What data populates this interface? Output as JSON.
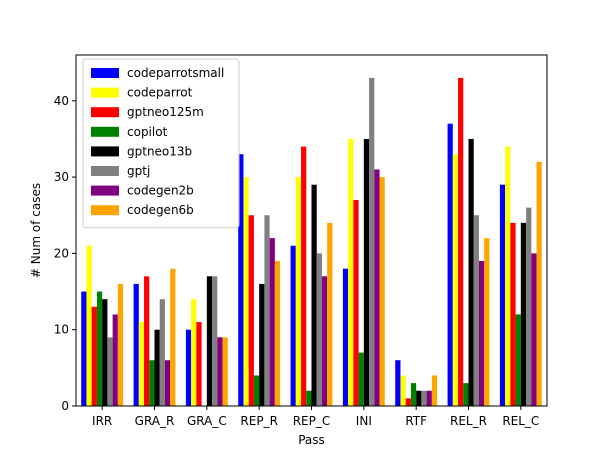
{
  "chart_data": {
    "type": "bar",
    "xlabel": "Pass",
    "ylabel": "# Num of cases",
    "ylim": [
      0,
      46
    ],
    "yticks": [
      0,
      10,
      20,
      30,
      40
    ],
    "categories": [
      "IRR",
      "GRA_R",
      "GRA_C",
      "REP_R",
      "REP_C",
      "INI",
      "RTF",
      "REL_R",
      "REL_C"
    ],
    "legend_position": "top-left",
    "series": [
      {
        "name": "codeparrotsmall",
        "color": "#0000ff",
        "values": [
          15,
          16,
          10,
          33,
          21,
          18,
          6,
          37,
          29
        ]
      },
      {
        "name": "codeparrot",
        "color": "#ffff00",
        "values": [
          21,
          11,
          14,
          30,
          30,
          35,
          4,
          33,
          34
        ]
      },
      {
        "name": "gptneo125m",
        "color": "#ff0000",
        "values": [
          13,
          17,
          11,
          25,
          34,
          27,
          1,
          43,
          24
        ]
      },
      {
        "name": "copilot",
        "color": "#008000",
        "values": [
          15,
          6,
          0,
          4,
          2,
          7,
          3,
          3,
          12
        ]
      },
      {
        "name": "gptneo13b",
        "color": "#000000",
        "values": [
          14,
          10,
          17,
          16,
          29,
          35,
          2,
          35,
          24
        ]
      },
      {
        "name": "gptj",
        "color": "#808080",
        "values": [
          9,
          14,
          17,
          25,
          20,
          43,
          2,
          25,
          26
        ]
      },
      {
        "name": "codegen2b",
        "color": "#800080",
        "values": [
          12,
          6,
          9,
          22,
          17,
          31,
          2,
          19,
          20
        ]
      },
      {
        "name": "codegen6b",
        "color": "#ffa500",
        "values": [
          16,
          18,
          9,
          19,
          24,
          30,
          4,
          22,
          32
        ]
      }
    ]
  }
}
